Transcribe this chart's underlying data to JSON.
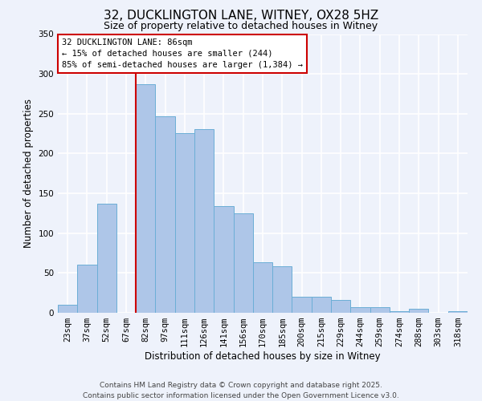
{
  "title": "32, DUCKLINGTON LANE, WITNEY, OX28 5HZ",
  "subtitle": "Size of property relative to detached houses in Witney",
  "xlabel": "Distribution of detached houses by size in Witney",
  "ylabel": "Number of detached properties",
  "bar_labels": [
    "23sqm",
    "37sqm",
    "52sqm",
    "67sqm",
    "82sqm",
    "97sqm",
    "111sqm",
    "126sqm",
    "141sqm",
    "156sqm",
    "170sqm",
    "185sqm",
    "200sqm",
    "215sqm",
    "229sqm",
    "244sqm",
    "259sqm",
    "274sqm",
    "288sqm",
    "303sqm",
    "318sqm"
  ],
  "bar_values": [
    10,
    60,
    137,
    0,
    287,
    247,
    226,
    231,
    134,
    125,
    63,
    58,
    20,
    20,
    16,
    7,
    7,
    2,
    5,
    0,
    2
  ],
  "bar_color": "#aec6e8",
  "bar_edge_color": "#6baed6",
  "vline_color": "#cc0000",
  "vline_index": 4,
  "ylim": [
    0,
    350
  ],
  "yticks": [
    0,
    50,
    100,
    150,
    200,
    250,
    300,
    350
  ],
  "annotation_title": "32 DUCKLINGTON LANE: 86sqm",
  "annotation_line1": "← 15% of detached houses are smaller (244)",
  "annotation_line2": "85% of semi-detached houses are larger (1,384) →",
  "annotation_box_color": "#ffffff",
  "annotation_border_color": "#cc0000",
  "footer_line1": "Contains HM Land Registry data © Crown copyright and database right 2025.",
  "footer_line2": "Contains public sector information licensed under the Open Government Licence v3.0.",
  "background_color": "#eef2fb",
  "grid_color": "#ffffff",
  "title_fontsize": 11,
  "subtitle_fontsize": 9,
  "axis_label_fontsize": 8.5,
  "tick_fontsize": 7.5,
  "annotation_fontsize": 7.5,
  "footer_fontsize": 6.5
}
